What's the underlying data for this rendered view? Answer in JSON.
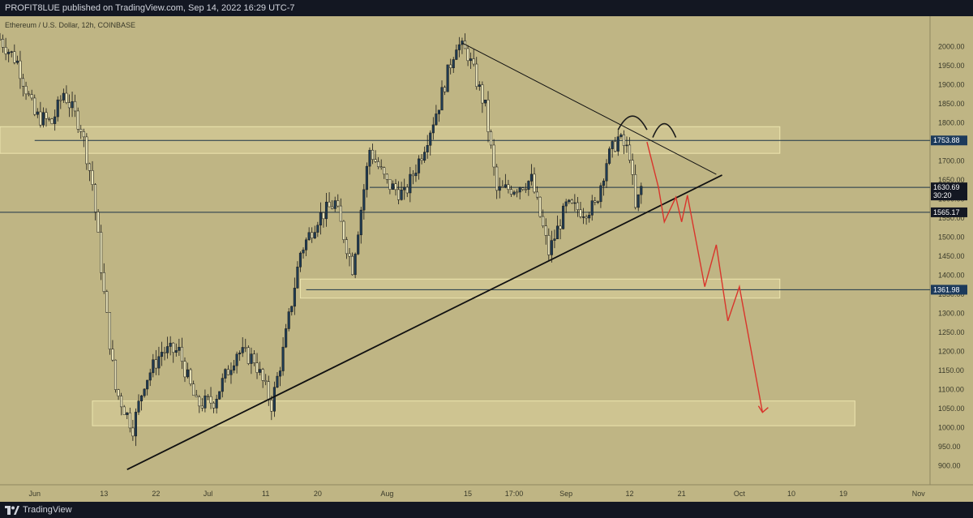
{
  "header": {
    "published_text": "PROFIT8LUE published on TradingView.com, Sep 14, 2022 16:29 UTC-7"
  },
  "footer": {
    "brand": "TradingView"
  },
  "chart": {
    "symbol_line": "Ethereum / U.S. Dollar, 12h, COINBASE",
    "colors": {
      "background": "#bfb584",
      "zone_fill": "#d3c996",
      "zone_stroke": "#ece4ae",
      "candle_up": "#1f3b52",
      "candle_down": "#e9e3b8",
      "wick": "#1a1a1a",
      "trendline": "#111111",
      "hline": "#1c3548",
      "projection": "#d9342b",
      "label_blue": "#1c3a5b",
      "label_dark": "#131722"
    },
    "price_labels": [
      {
        "price": 1753.88,
        "text": "1753.88",
        "style": "blue"
      },
      {
        "price": 1630.69,
        "text": "1630.69",
        "sub": "30:20",
        "style": "dark"
      },
      {
        "price": 1565.17,
        "text": "1565.17",
        "style": "dark"
      },
      {
        "price": 1361.98,
        "text": "1361.98",
        "style": "blue"
      }
    ]
  },
  "chart_data": {
    "type": "candlestick",
    "title": "Ethereum / U.S. Dollar, 12h, COINBASE",
    "ylim": [
      850,
      2080
    ],
    "y_ticks": [
      900,
      950,
      1000,
      1050,
      1100,
      1150,
      1200,
      1250,
      1300,
      1350,
      1400,
      1450,
      1500,
      1550,
      1600,
      1650,
      1700,
      1750,
      1800,
      1850,
      1900,
      1950,
      2000
    ],
    "x_domain": [
      "2022-05-26",
      "2022-11-03"
    ],
    "x_ticks": [
      {
        "date": "2022-06-01",
        "label": "Jun"
      },
      {
        "date": "2022-06-13",
        "label": "13"
      },
      {
        "date": "2022-06-22",
        "label": "22"
      },
      {
        "date": "2022-07-01",
        "label": "Jul"
      },
      {
        "date": "2022-07-11",
        "label": "11"
      },
      {
        "date": "2022-07-20",
        "label": "20"
      },
      {
        "date": "2022-08-01",
        "label": "Aug"
      },
      {
        "date": "2022-08-15",
        "label": "15"
      },
      {
        "date": "2022-08-23",
        "label": "17:00"
      },
      {
        "date": "2022-09-01",
        "label": "Sep"
      },
      {
        "date": "2022-09-12",
        "label": "12"
      },
      {
        "date": "2022-09-21",
        "label": "21"
      },
      {
        "date": "2022-10-01",
        "label": "Oct"
      },
      {
        "date": "2022-10-10",
        "label": "10"
      },
      {
        "date": "2022-10-19",
        "label": "19"
      },
      {
        "date": "2022-11-01",
        "label": "Nov"
      }
    ],
    "price_path": [
      [
        "2022-05-26",
        2020
      ],
      [
        "2022-05-29",
        1960
      ],
      [
        "2022-06-01",
        1820
      ],
      [
        "2022-06-04",
        1800
      ],
      [
        "2022-06-06",
        1880
      ],
      [
        "2022-06-09",
        1790
      ],
      [
        "2022-06-11",
        1640
      ],
      [
        "2022-06-13",
        1350
      ],
      [
        "2022-06-15",
        1100
      ],
      [
        "2022-06-18",
        1000
      ],
      [
        "2022-06-20",
        1120
      ],
      [
        "2022-06-23",
        1200
      ],
      [
        "2022-06-26",
        1200
      ],
      [
        "2022-06-29",
        1060
      ],
      [
        "2022-07-02",
        1070
      ],
      [
        "2022-07-06",
        1200
      ],
      [
        "2022-07-09",
        1180
      ],
      [
        "2022-07-12",
        1060
      ],
      [
        "2022-07-14",
        1200
      ],
      [
        "2022-07-17",
        1460
      ],
      [
        "2022-07-20",
        1550
      ],
      [
        "2022-07-23",
        1590
      ],
      [
        "2022-07-26",
        1420
      ],
      [
        "2022-07-29",
        1730
      ],
      [
        "2022-08-01",
        1640
      ],
      [
        "2022-08-04",
        1610
      ],
      [
        "2022-08-07",
        1720
      ],
      [
        "2022-08-10",
        1850
      ],
      [
        "2022-08-13",
        2010
      ],
      [
        "2022-08-15",
        1980
      ],
      [
        "2022-08-18",
        1840
      ],
      [
        "2022-08-20",
        1620
      ],
      [
        "2022-08-23",
        1630
      ],
      [
        "2022-08-26",
        1650
      ],
      [
        "2022-08-29",
        1460
      ],
      [
        "2022-09-01",
        1580
      ],
      [
        "2022-09-04",
        1570
      ],
      [
        "2022-09-06",
        1580
      ],
      [
        "2022-09-08",
        1700
      ],
      [
        "2022-09-10",
        1760
      ],
      [
        "2022-09-12",
        1720
      ],
      [
        "2022-09-13",
        1570
      ],
      [
        "2022-09-14",
        1630
      ]
    ],
    "zones": [
      {
        "from": "2022-05-26",
        "to": "2022-10-08",
        "low": 1720,
        "high": 1790
      },
      {
        "from": "2022-07-17",
        "to": "2022-10-08",
        "low": 1340,
        "high": 1390
      },
      {
        "from": "2022-06-11",
        "to": "2022-10-21",
        "low": 1005,
        "high": 1070
      }
    ],
    "horizontal_lines": [
      {
        "price": 1753.88,
        "from": "2022-06-01",
        "to": "2022-11-03"
      },
      {
        "price": 1630.69,
        "from": "2022-07-29",
        "to": "2022-11-03"
      },
      {
        "price": 1565.17,
        "from": "2022-05-26",
        "to": "2022-11-03"
      },
      {
        "price": 1361.98,
        "from": "2022-07-18",
        "to": "2022-11-03"
      }
    ],
    "trendlines": [
      {
        "points": [
          [
            "2022-06-17",
            890
          ],
          [
            "2022-09-28",
            1663
          ]
        ]
      },
      {
        "points": [
          [
            "2022-08-14",
            2010
          ],
          [
            "2022-09-27",
            1665
          ]
        ]
      }
    ],
    "projection_path": [
      [
        "2022-09-15",
        1750
      ],
      [
        "2022-09-17",
        1630
      ],
      [
        "2022-09-18",
        1540
      ],
      [
        "2022-09-20",
        1605
      ],
      [
        "2022-09-21",
        1540
      ],
      [
        "2022-09-22",
        1610
      ],
      [
        "2022-09-25",
        1370
      ],
      [
        "2022-09-27",
        1480
      ],
      [
        "2022-09-29",
        1280
      ],
      [
        "2022-10-01",
        1370
      ],
      [
        "2022-10-05",
        1040
      ]
    ],
    "head_and_shoulders_arcs": [
      {
        "from": "2022-09-10",
        "to": "2022-09-15",
        "peak": 1820
      },
      {
        "from": "2022-09-16",
        "to": "2022-09-20",
        "peak": 1800
      }
    ]
  }
}
